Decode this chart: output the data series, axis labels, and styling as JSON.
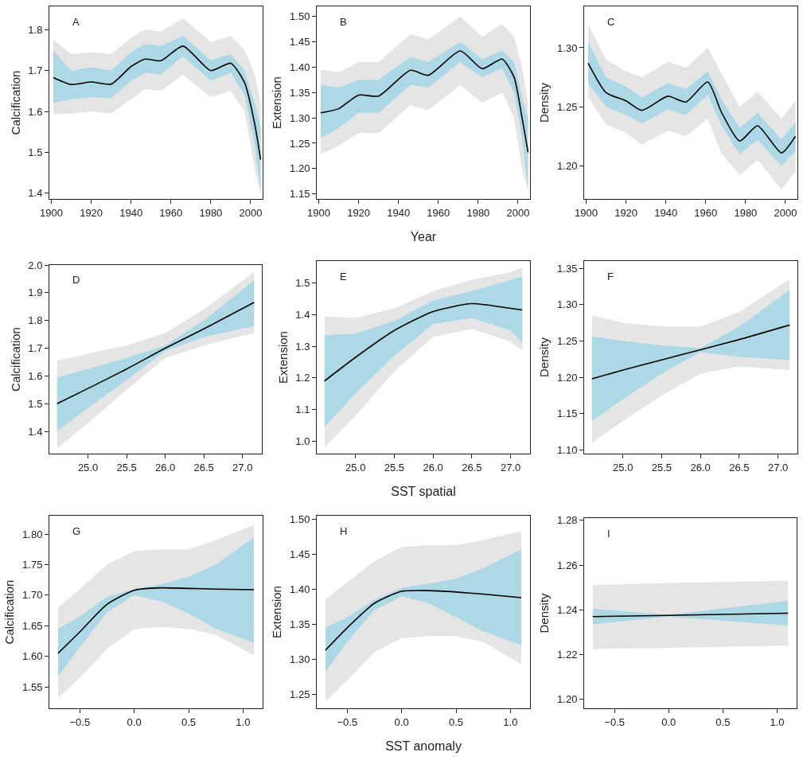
{
  "chart_data": [
    {
      "type": "line",
      "ylabel": "Calcification",
      "annotations": [
        "A"
      ],
      "grid": false,
      "xlim": [
        1899,
        2006
      ],
      "xticks": [
        1900,
        1920,
        1940,
        1960,
        1980,
        2000
      ],
      "ylim": [
        1.386,
        1.857
      ],
      "yticks": [
        1.4,
        1.5,
        1.6,
        1.7,
        1.8
      ],
      "x": [
        1901,
        1910,
        1920,
        1930,
        1940,
        1947,
        1955,
        1966,
        1980,
        1990,
        1997,
        2002,
        2005
      ],
      "series": [
        {
          "color": "#e5e5e5",
          "values": [
            null,
            null,
            null,
            null,
            null,
            null,
            null,
            null,
            null,
            null,
            null,
            null,
            null
          ],
          "lower": [
            1.593,
            1.595,
            1.6,
            1.595,
            1.63,
            1.655,
            1.65,
            1.69,
            1.635,
            1.65,
            1.6,
            1.46,
            1.4
          ],
          "upper": [
            1.776,
            1.74,
            1.745,
            1.74,
            1.78,
            1.8,
            1.795,
            1.828,
            1.77,
            1.785,
            1.75,
            1.69,
            1.62
          ]
        },
        {
          "color": "#add8e6",
          "values": [
            null,
            null,
            null,
            null,
            null,
            null,
            null,
            null,
            null,
            null,
            null,
            null,
            null
          ],
          "lower": [
            1.621,
            1.63,
            1.635,
            1.632,
            1.675,
            1.695,
            1.69,
            1.735,
            1.675,
            1.695,
            1.64,
            1.52,
            1.4
          ],
          "upper": [
            1.748,
            1.7,
            1.708,
            1.7,
            1.745,
            1.765,
            1.76,
            1.785,
            1.725,
            1.74,
            1.7,
            1.62,
            1.56
          ]
        },
        {
          "color": "#000000",
          "values": [
            1.683,
            1.666,
            1.672,
            1.667,
            1.71,
            1.728,
            1.724,
            1.76,
            1.7,
            1.718,
            1.67,
            1.57,
            1.482
          ]
        }
      ]
    },
    {
      "type": "line",
      "ylabel": "Extension",
      "xlabel": "Year",
      "annotations": [
        "B"
      ],
      "grid": false,
      "xlim": [
        1899,
        2006
      ],
      "xticks": [
        1900,
        1920,
        1940,
        1960,
        1980,
        2000
      ],
      "ylim": [
        1.14,
        1.52
      ],
      "yticks": [
        1.15,
        {
          "value": 1.2,
          "label": "1.20"
        },
        1.25,
        {
          "value": 1.3,
          "label": "1.30"
        },
        1.35,
        {
          "value": 1.4,
          "label": "1.40"
        },
        1.45,
        {
          "value": 1.5,
          "label": "1.50"
        }
      ],
      "x": [
        1901,
        1910,
        1920,
        1930,
        1946,
        1955,
        1971,
        1982,
        1992,
        1998,
        2002,
        2005
      ],
      "series": [
        {
          "color": "#e5e5e5",
          "values": [
            null,
            null,
            null,
            null,
            null,
            null,
            null,
            null,
            null,
            null,
            null,
            null
          ],
          "lower": [
            1.228,
            1.245,
            1.27,
            1.27,
            1.325,
            1.315,
            1.365,
            1.33,
            1.35,
            1.3,
            1.2,
            1.155
          ],
          "upper": [
            1.395,
            1.39,
            1.41,
            1.41,
            1.465,
            1.455,
            1.5,
            1.46,
            1.485,
            1.46,
            1.4,
            1.33
          ]
        },
        {
          "color": "#add8e6",
          "values": [
            null,
            null,
            null,
            null,
            null,
            null,
            null,
            null,
            null,
            null,
            null,
            null
          ],
          "lower": [
            1.26,
            1.28,
            1.31,
            1.31,
            1.365,
            1.36,
            1.41,
            1.38,
            1.398,
            1.35,
            1.26,
            1.16
          ],
          "upper": [
            1.365,
            1.36,
            1.375,
            1.375,
            1.42,
            1.41,
            1.45,
            1.415,
            1.433,
            1.41,
            1.34,
            1.3
          ]
        },
        {
          "color": "#000000",
          "values": [
            1.31,
            1.318,
            1.345,
            1.343,
            1.394,
            1.384,
            1.432,
            1.397,
            1.416,
            1.38,
            1.3,
            1.232
          ]
        }
      ]
    },
    {
      "type": "line",
      "ylabel": "Density",
      "annotations": [
        "C"
      ],
      "grid": false,
      "xlim": [
        1899,
        2006
      ],
      "xticks": [
        1900,
        1920,
        1940,
        1960,
        1980,
        2000
      ],
      "ylim": [
        1.172,
        1.335
      ],
      "yticks": [
        {
          "value": 1.2,
          "label": "1.20"
        },
        1.25,
        {
          "value": 1.3,
          "label": "1.30"
        }
      ],
      "x": [
        1901,
        1910,
        1920,
        1928,
        1941,
        1950,
        1961,
        1968,
        1977,
        1986,
        1998,
        2005
      ],
      "series": [
        {
          "color": "#e5e5e5",
          "values": [
            null,
            null,
            null,
            null,
            null,
            null,
            null,
            null,
            null,
            null,
            null,
            null
          ],
          "lower": [
            1.258,
            1.235,
            1.228,
            1.218,
            1.23,
            1.225,
            1.24,
            1.21,
            1.192,
            1.205,
            1.18,
            1.195
          ],
          "upper": [
            1.32,
            1.29,
            1.28,
            1.275,
            1.288,
            1.283,
            1.3,
            1.278,
            1.25,
            1.263,
            1.24,
            1.255
          ]
        },
        {
          "color": "#add8e6",
          "values": [
            null,
            null,
            null,
            null,
            null,
            null,
            null,
            null,
            null,
            null,
            null,
            null
          ],
          "lower": [
            1.27,
            1.25,
            1.243,
            1.236,
            1.248,
            1.243,
            1.26,
            1.234,
            1.21,
            1.222,
            1.2,
            1.212
          ],
          "upper": [
            1.305,
            1.275,
            1.267,
            1.258,
            1.27,
            1.265,
            1.28,
            1.256,
            1.232,
            1.245,
            1.222,
            1.237
          ]
        },
        {
          "color": "#000000",
          "values": [
            1.287,
            1.262,
            1.255,
            1.247,
            1.259,
            1.254,
            1.271,
            1.245,
            1.221,
            1.234,
            1.211,
            1.225
          ]
        }
      ]
    },
    {
      "type": "line",
      "ylabel": "Calcification",
      "annotations": [
        "D"
      ],
      "grid": false,
      "xlim": [
        24.5,
        27.25
      ],
      "xticks": [
        {
          "value": 25,
          "label": "25.0"
        },
        25.5,
        {
          "value": 26,
          "label": "26.0"
        },
        26.5,
        {
          "value": 27,
          "label": "27.0"
        }
      ],
      "ylim": [
        1.32,
        2.0
      ],
      "yticks": [
        1.4,
        1.5,
        1.6,
        1.7,
        1.8,
        1.9,
        {
          "value": 2,
          "label": "2.0"
        }
      ],
      "x": [
        24.6,
        25.0,
        25.5,
        26.0,
        26.5,
        27.15
      ],
      "series": [
        {
          "color": "#e5e5e5",
          "values": [
            null,
            null,
            null,
            null,
            null,
            null
          ],
          "lower": [
            1.34,
            1.43,
            1.55,
            1.665,
            1.71,
            1.755
          ],
          "upper": [
            1.655,
            1.68,
            1.71,
            1.755,
            1.84,
            1.975
          ]
        },
        {
          "color": "#add8e6",
          "values": [
            null,
            null,
            null,
            null,
            null,
            null
          ],
          "lower": [
            1.4,
            1.485,
            1.585,
            1.69,
            1.74,
            1.78
          ],
          "upper": [
            1.595,
            1.625,
            1.665,
            1.71,
            1.8,
            1.945
          ]
        },
        {
          "color": "#000000",
          "values": [
            1.5,
            1.555,
            1.625,
            1.7,
            1.77,
            1.865
          ]
        }
      ]
    },
    {
      "type": "line",
      "ylabel": "Extension",
      "xlabel": "SST spatial",
      "annotations": [
        "E"
      ],
      "grid": false,
      "xlim": [
        24.5,
        27.25
      ],
      "xticks": [
        {
          "value": 25,
          "label": "25.0"
        },
        25.5,
        {
          "value": 26,
          "label": "26.0"
        },
        26.5,
        {
          "value": 27,
          "label": "27.0"
        }
      ],
      "ylim": [
        0.96,
        1.57
      ],
      "yticks": [
        {
          "value": 1,
          "label": "1.0"
        },
        1.1,
        1.2,
        1.3,
        1.4,
        1.5
      ],
      "x": [
        24.6,
        25.0,
        25.5,
        26.0,
        26.5,
        27.0,
        27.15
      ],
      "series": [
        {
          "color": "#e5e5e5",
          "values": [
            null,
            null,
            null,
            null,
            null,
            null,
            null
          ],
          "lower": [
            0.98,
            1.08,
            1.22,
            1.33,
            1.355,
            1.315,
            1.285
          ],
          "upper": [
            1.395,
            1.39,
            1.42,
            1.475,
            1.51,
            1.535,
            1.55
          ]
        },
        {
          "color": "#add8e6",
          "values": [
            null,
            null,
            null,
            null,
            null,
            null,
            null
          ],
          "lower": [
            1.045,
            1.15,
            1.27,
            1.37,
            1.39,
            1.35,
            1.31
          ],
          "upper": [
            1.335,
            1.34,
            1.38,
            1.445,
            1.475,
            1.51,
            1.52
          ]
        },
        {
          "color": "#000000",
          "values": [
            1.19,
            1.265,
            1.35,
            1.41,
            1.435,
            1.42,
            1.415
          ]
        }
      ]
    },
    {
      "type": "line",
      "ylabel": "Density",
      "annotations": [
        "F"
      ],
      "grid": false,
      "xlim": [
        24.5,
        27.25
      ],
      "xticks": [
        {
          "value": 25,
          "label": "25.0"
        },
        25.5,
        {
          "value": 26,
          "label": "26.0"
        },
        26.5,
        {
          "value": 27,
          "label": "27.0"
        }
      ],
      "ylim": [
        1.095,
        1.36
      ],
      "yticks": [
        {
          "value": 1.1,
          "label": "1.10"
        },
        1.15,
        {
          "value": 1.2,
          "label": "1.20"
        },
        1.25,
        {
          "value": 1.3,
          "label": "1.30"
        },
        1.35
      ],
      "x": [
        24.6,
        25.0,
        25.5,
        26.0,
        26.5,
        27.15
      ],
      "series": [
        {
          "color": "#e5e5e5",
          "values": [
            null,
            null,
            null,
            null,
            null,
            null
          ],
          "lower": [
            1.11,
            1.14,
            1.175,
            1.205,
            1.215,
            1.21
          ],
          "upper": [
            1.285,
            1.275,
            1.27,
            1.27,
            1.29,
            1.335
          ]
        },
        {
          "color": "#add8e6",
          "values": [
            null,
            null,
            null,
            null,
            null,
            null
          ],
          "lower": [
            1.14,
            1.17,
            1.205,
            1.235,
            1.228,
            1.224
          ],
          "upper": [
            1.256,
            1.25,
            1.244,
            1.24,
            1.27,
            1.32
          ]
        },
        {
          "color": "#000000",
          "values": [
            1.198,
            1.21,
            1.224,
            1.238,
            1.252,
            1.272
          ]
        }
      ]
    },
    {
      "type": "line",
      "ylabel": "Calcification",
      "annotations": [
        "G"
      ],
      "grid": false,
      "xlim": [
        -0.78,
        1.18
      ],
      "xticks": [
        {
          "value": -0.5,
          "label": "−0.5"
        },
        {
          "value": 0,
          "label": "0.0"
        },
        0.5,
        {
          "value": 1,
          "label": "1.0"
        }
      ],
      "ylim": [
        1.515,
        1.83
      ],
      "yticks": [
        1.55,
        {
          "value": 1.6,
          "label": "1.60"
        },
        1.65,
        {
          "value": 1.7,
          "label": "1.70"
        },
        1.75,
        {
          "value": 1.8,
          "label": "1.80"
        }
      ],
      "x": [
        -0.7,
        -0.5,
        -0.25,
        0,
        0.25,
        0.5,
        0.75,
        1.1
      ],
      "series": [
        {
          "color": "#e5e5e5",
          "values": [
            null,
            null,
            null,
            null,
            null,
            null,
            null,
            null
          ],
          "lower": [
            1.532,
            1.565,
            1.612,
            1.645,
            1.648,
            1.645,
            1.635,
            1.602
          ],
          "upper": [
            1.68,
            1.71,
            1.75,
            1.772,
            1.775,
            1.775,
            1.79,
            1.815
          ]
        },
        {
          "color": "#add8e6",
          "values": [
            null,
            null,
            null,
            null,
            null,
            null,
            null,
            null
          ],
          "lower": [
            1.567,
            1.615,
            1.672,
            1.7,
            1.69,
            1.67,
            1.645,
            1.622
          ],
          "upper": [
            1.645,
            1.665,
            1.697,
            1.71,
            1.718,
            1.73,
            1.75,
            1.795
          ]
        },
        {
          "color": "#000000",
          "values": [
            1.605,
            1.64,
            1.685,
            1.708,
            1.712,
            1.711,
            1.71,
            1.709
          ]
        }
      ]
    },
    {
      "type": "line",
      "ylabel": "Extension",
      "xlabel": "SST anomaly",
      "annotations": [
        "H"
      ],
      "grid": false,
      "xlim": [
        -0.78,
        1.18
      ],
      "xticks": [
        {
          "value": -0.5,
          "label": "−0.5"
        },
        {
          "value": 0,
          "label": "0.0"
        },
        0.5,
        {
          "value": 1,
          "label": "1.0"
        }
      ],
      "ylim": [
        1.23,
        1.505
      ],
      "yticks": [
        1.25,
        {
          "value": 1.3,
          "label": "1.30"
        },
        1.35,
        {
          "value": 1.4,
          "label": "1.40"
        },
        1.45,
        {
          "value": 1.5,
          "label": "1.50"
        }
      ],
      "x": [
        -0.7,
        -0.5,
        -0.25,
        0,
        0.25,
        0.5,
        0.75,
        1.1
      ],
      "series": [
        {
          "color": "#e5e5e5",
          "values": [
            null,
            null,
            null,
            null,
            null,
            null,
            null,
            null
          ],
          "lower": [
            1.24,
            1.27,
            1.31,
            1.33,
            1.333,
            1.333,
            1.325,
            1.293
          ],
          "upper": [
            1.385,
            1.41,
            1.44,
            1.46,
            1.463,
            1.463,
            1.47,
            1.483
          ]
        },
        {
          "color": "#add8e6",
          "values": [
            null,
            null,
            null,
            null,
            null,
            null,
            null,
            null
          ],
          "lower": [
            1.282,
            1.325,
            1.37,
            1.39,
            1.38,
            1.36,
            1.34,
            1.32
          ],
          "upper": [
            1.345,
            1.36,
            1.385,
            1.402,
            1.408,
            1.415,
            1.43,
            1.457
          ]
        },
        {
          "color": "#000000",
          "values": [
            1.313,
            1.345,
            1.38,
            1.397,
            1.398,
            1.396,
            1.393,
            1.388
          ]
        }
      ]
    },
    {
      "type": "line",
      "ylabel": "Density",
      "annotations": [
        "I"
      ],
      "grid": false,
      "xlim": [
        -0.78,
        1.18
      ],
      "xticks": [
        {
          "value": -0.5,
          "label": "−0.5"
        },
        {
          "value": 0,
          "label": "0.0"
        },
        0.5,
        {
          "value": 1,
          "label": "1.0"
        }
      ],
      "ylim": [
        1.196,
        1.281
      ],
      "yticks": [
        {
          "value": 1.2,
          "label": "1.20"
        },
        1.22,
        1.24,
        1.26,
        1.28
      ],
      "x": [
        -0.7,
        0,
        1.1
      ],
      "series": [
        {
          "color": "#e5e5e5",
          "values": [
            null,
            null,
            null
          ],
          "lower": [
            1.2225,
            1.223,
            1.224
          ],
          "upper": [
            1.251,
            1.252,
            1.253
          ]
        },
        {
          "color": "#add8e6",
          "values": [
            null,
            null,
            null
          ],
          "lower": [
            1.2335,
            1.237,
            1.233
          ],
          "upper": [
            1.2405,
            1.2378,
            1.244
          ]
        },
        {
          "color": "#000000",
          "values": [
            1.237,
            1.2375,
            1.2385
          ]
        }
      ]
    }
  ]
}
